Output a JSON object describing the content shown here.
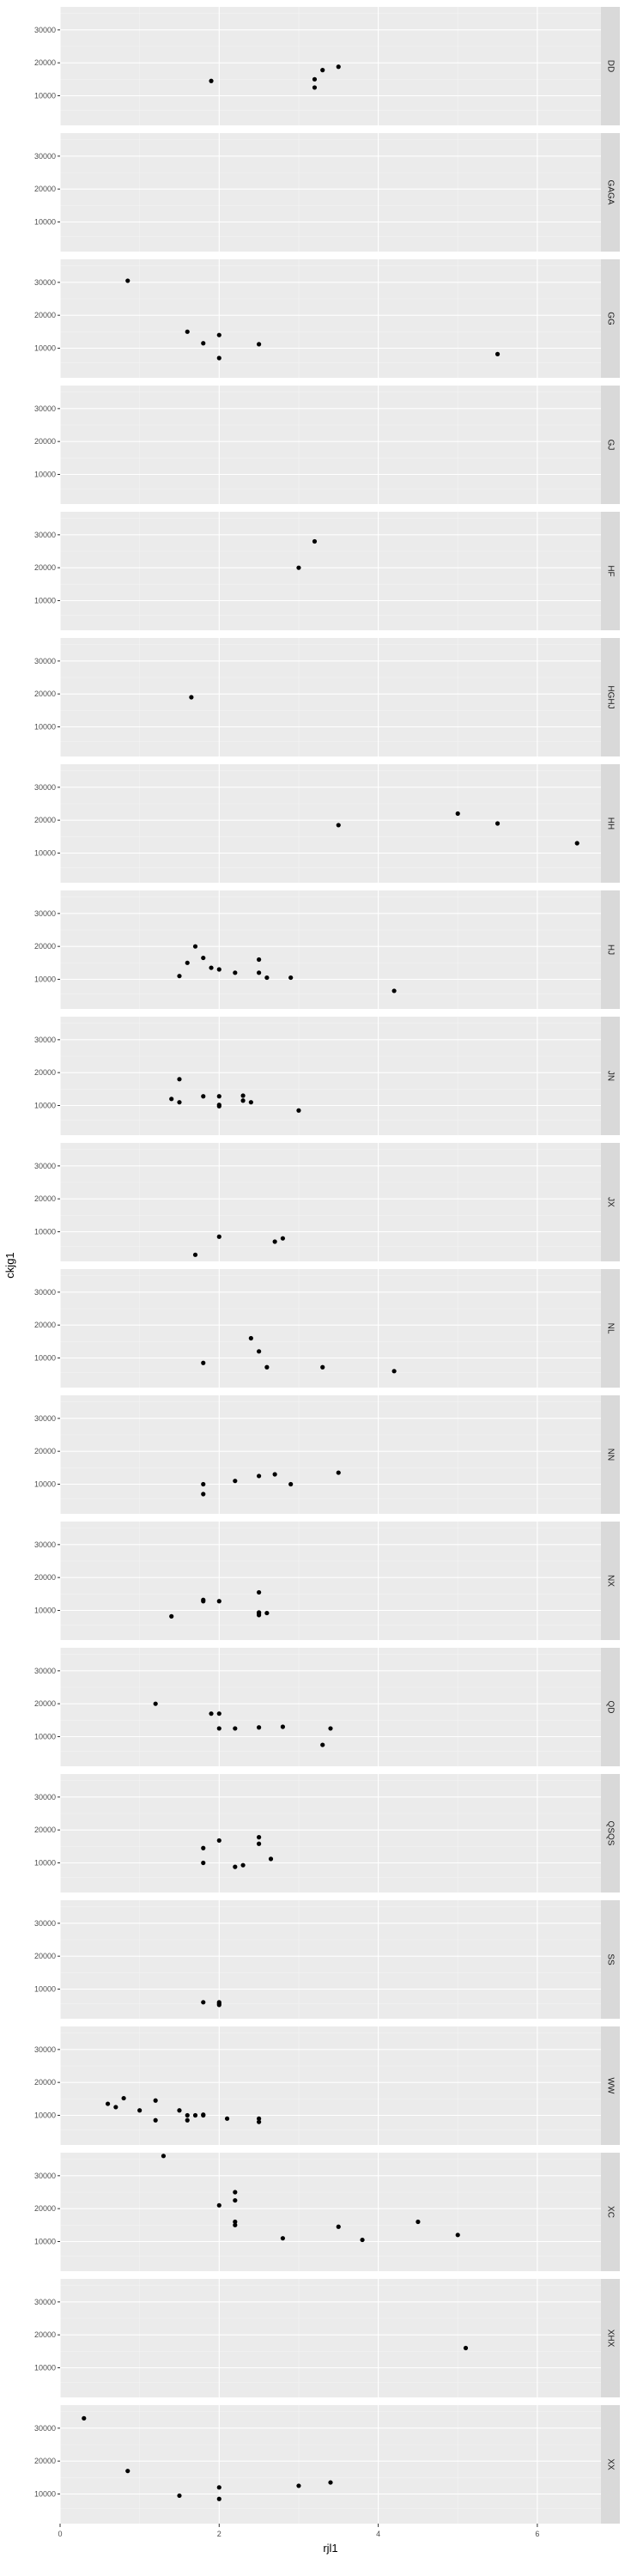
{
  "chart_data": {
    "type": "scatter",
    "xlabel": "rjl1",
    "ylabel": "ckjg1",
    "xlim": [
      0,
      6.8
    ],
    "ylim": [
      1000,
      37000
    ],
    "x_ticks": [
      0,
      2,
      4,
      6
    ],
    "y_ticks": [
      10000,
      20000,
      30000
    ],
    "grid": true,
    "facet_strip_position": "right",
    "colors": {
      "panel_background": "#ebebeb",
      "grid_major": "#ffffff",
      "grid_minor": "#f4f4f4",
      "strip_background": "#d9d9d9",
      "point": "#000000"
    },
    "facets": [
      {
        "label": "DD",
        "points": [
          [
            1.9,
            14500
          ],
          [
            3.2,
            15000
          ],
          [
            3.2,
            12500
          ],
          [
            3.3,
            17800
          ],
          [
            3.5,
            18800
          ]
        ]
      },
      {
        "label": "GAGA",
        "points": []
      },
      {
        "label": "GG",
        "points": [
          [
            0.85,
            30500
          ],
          [
            1.6,
            15000
          ],
          [
            1.8,
            11500
          ],
          [
            2.0,
            14000
          ],
          [
            2.0,
            7000
          ],
          [
            2.5,
            11200
          ],
          [
            5.5,
            8200
          ]
        ]
      },
      {
        "label": "GJ",
        "points": []
      },
      {
        "label": "HF",
        "points": [
          [
            3.0,
            20000
          ],
          [
            3.2,
            28000
          ]
        ]
      },
      {
        "label": "HGHJ",
        "points": [
          [
            1.65,
            19000
          ]
        ]
      },
      {
        "label": "HH",
        "points": [
          [
            3.5,
            18500
          ],
          [
            5.0,
            22000
          ],
          [
            5.5,
            19000
          ],
          [
            6.5,
            13000
          ]
        ]
      },
      {
        "label": "HJ",
        "points": [
          [
            1.5,
            11000
          ],
          [
            1.6,
            15000
          ],
          [
            1.7,
            20000
          ],
          [
            1.8,
            16500
          ],
          [
            1.9,
            13500
          ],
          [
            2.0,
            13000
          ],
          [
            2.2,
            12000
          ],
          [
            2.5,
            16000
          ],
          [
            2.5,
            12000
          ],
          [
            2.6,
            10500
          ],
          [
            2.9,
            10500
          ],
          [
            4.2,
            6500
          ]
        ]
      },
      {
        "label": "JN",
        "points": [
          [
            1.4,
            12000
          ],
          [
            1.5,
            18000
          ],
          [
            1.5,
            11000
          ],
          [
            1.8,
            12800
          ],
          [
            2.0,
            12800
          ],
          [
            2.0,
            10200
          ],
          [
            2.0,
            9800
          ],
          [
            2.3,
            13000
          ],
          [
            2.3,
            11500
          ],
          [
            2.4,
            11000
          ],
          [
            3.0,
            8500
          ]
        ]
      },
      {
        "label": "JX",
        "points": [
          [
            1.7,
            3000
          ],
          [
            2.0,
            8500
          ],
          [
            2.7,
            7000
          ],
          [
            2.8,
            8000
          ]
        ]
      },
      {
        "label": "NL",
        "points": [
          [
            1.8,
            8500
          ],
          [
            2.4,
            16000
          ],
          [
            2.5,
            12000
          ],
          [
            2.6,
            7200
          ],
          [
            3.3,
            7200
          ],
          [
            4.2,
            6000
          ]
        ]
      },
      {
        "label": "NN",
        "points": [
          [
            1.8,
            7000
          ],
          [
            1.8,
            10000
          ],
          [
            2.2,
            11000
          ],
          [
            2.5,
            12500
          ],
          [
            2.7,
            13000
          ],
          [
            2.9,
            10000
          ],
          [
            3.5,
            13500
          ]
        ]
      },
      {
        "label": "NX",
        "points": [
          [
            1.4,
            8200
          ],
          [
            1.8,
            12800
          ],
          [
            1.8,
            13200
          ],
          [
            2.0,
            12800
          ],
          [
            2.5,
            15500
          ],
          [
            2.5,
            9200
          ],
          [
            2.5,
            8600
          ],
          [
            2.5,
            9400
          ],
          [
            2.6,
            9200
          ]
        ]
      },
      {
        "label": "QD",
        "points": [
          [
            1.2,
            20000
          ],
          [
            1.9,
            17000
          ],
          [
            2.0,
            17000
          ],
          [
            2.0,
            12500
          ],
          [
            2.2,
            12500
          ],
          [
            2.5,
            12800
          ],
          [
            2.8,
            13000
          ],
          [
            3.3,
            7500
          ],
          [
            3.4,
            12500
          ]
        ]
      },
      {
        "label": "QSQS",
        "points": [
          [
            1.8,
            14500
          ],
          [
            1.8,
            10000
          ],
          [
            2.0,
            16800
          ],
          [
            2.2,
            8800
          ],
          [
            2.3,
            9300
          ],
          [
            2.5,
            17800
          ],
          [
            2.5,
            15800
          ],
          [
            2.65,
            11200
          ]
        ]
      },
      {
        "label": "SS",
        "points": [
          [
            1.8,
            6000
          ],
          [
            2.0,
            6000
          ],
          [
            2.0,
            5200
          ],
          [
            2.0,
            5600
          ]
        ]
      },
      {
        "label": "WW",
        "points": [
          [
            0.6,
            13500
          ],
          [
            0.7,
            12500
          ],
          [
            0.8,
            15200
          ],
          [
            1.0,
            11500
          ],
          [
            1.2,
            14500
          ],
          [
            1.2,
            8500
          ],
          [
            1.5,
            11500
          ],
          [
            1.6,
            10000
          ],
          [
            1.6,
            8500
          ],
          [
            1.7,
            10000
          ],
          [
            1.8,
            10200
          ],
          [
            1.8,
            10000
          ],
          [
            2.1,
            9000
          ],
          [
            2.5,
            9000
          ],
          [
            2.5,
            8000
          ]
        ]
      },
      {
        "label": "XC",
        "points": [
          [
            1.3,
            36000
          ],
          [
            2.0,
            21000
          ],
          [
            2.2,
            25000
          ],
          [
            2.2,
            22500
          ],
          [
            2.2,
            16000
          ],
          [
            2.2,
            15000
          ],
          [
            2.8,
            11000
          ],
          [
            3.5,
            14500
          ],
          [
            3.8,
            10500
          ],
          [
            4.5,
            16000
          ],
          [
            5.0,
            12000
          ]
        ]
      },
      {
        "label": "XHX",
        "points": [
          [
            5.1,
            16000
          ]
        ]
      },
      {
        "label": "XX",
        "points": [
          [
            0.3,
            33000
          ],
          [
            0.85,
            17000
          ],
          [
            1.5,
            9500
          ],
          [
            2.0,
            12000
          ],
          [
            2.0,
            8500
          ],
          [
            3.0,
            12500
          ],
          [
            3.4,
            13500
          ]
        ]
      }
    ]
  }
}
